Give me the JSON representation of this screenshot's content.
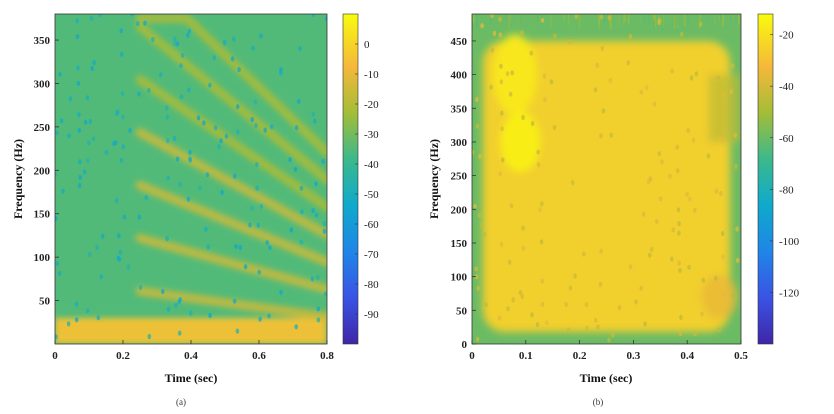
{
  "chart_data": [
    {
      "type": "heatmap",
      "caption": "(a)",
      "xlabel": "Time (sec)",
      "ylabel": "Frequency (Hz)",
      "xlim": [
        0,
        0.8
      ],
      "ylim": [
        0,
        380
      ],
      "xticks": [
        "0",
        "0.2",
        "0.4",
        "0.6",
        "0.8"
      ],
      "xtick_values": [
        0,
        0.2,
        0.4,
        0.6,
        0.8
      ],
      "yticks": [
        "50",
        "100",
        "150",
        "200",
        "250",
        "300",
        "350"
      ],
      "ytick_values": [
        50,
        100,
        150,
        200,
        250,
        300,
        350
      ],
      "colorbar": {
        "range": [
          -100,
          10
        ],
        "ticks": [
          "0",
          "-10",
          "-20",
          "-30",
          "-40",
          "-50",
          "-60",
          "-70",
          "-80",
          "-90"
        ],
        "tick_values": [
          0,
          -10,
          -20,
          -30,
          -40,
          -50,
          -60,
          -70,
          -80,
          -90
        ]
      },
      "colormap": "parula",
      "background_level": -35,
      "features": [
        {
          "kind": "low-frequency band",
          "freq_max": 30,
          "level": -5
        },
        {
          "kind": "harmonic ridges",
          "t_start": 0.25,
          "t_end": 0.8,
          "level": -15
        }
      ]
    },
    {
      "type": "heatmap",
      "caption": "(b)",
      "xlabel": "Time (sec)",
      "ylabel": "Frequency (Hz)",
      "xlim": [
        0,
        0.5
      ],
      "ylim": [
        0,
        490
      ],
      "xticks": [
        "0",
        "0.1",
        "0.2",
        "0.3",
        "0.4",
        "0.5"
      ],
      "xtick_values": [
        0,
        0.1,
        0.2,
        0.3,
        0.4,
        0.5
      ],
      "yticks": [
        "0",
        "50",
        "100",
        "150",
        "200",
        "250",
        "300",
        "350",
        "400",
        "450"
      ],
      "ytick_values": [
        0,
        50,
        100,
        150,
        200,
        250,
        300,
        350,
        400,
        450
      ],
      "colorbar": {
        "range": [
          -140,
          -12
        ],
        "ticks": [
          "-20",
          "-40",
          "-60",
          "-80",
          "-100",
          "-120"
        ],
        "tick_values": [
          -20,
          -40,
          -60,
          -80,
          -100,
          -120
        ]
      },
      "colormap": "parula",
      "background_level": -60,
      "features": [
        {
          "kind": "broadband energy region",
          "t_start": 0.02,
          "t_end": 0.48,
          "freq_max": 450,
          "level": -25
        }
      ]
    }
  ]
}
